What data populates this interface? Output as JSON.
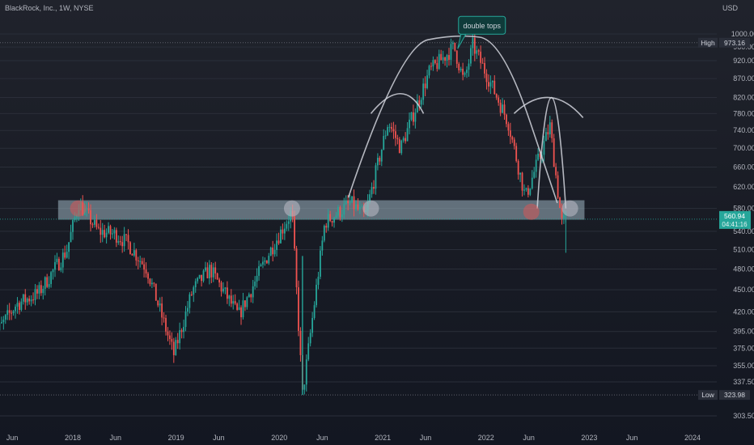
{
  "header": {
    "symbol": "BlackRock, Inc., 1W, NYSE",
    "currency": "USD"
  },
  "annotation": {
    "text": "double tops"
  },
  "markers": {
    "high": {
      "label": "High",
      "value": "973.16"
    },
    "low": {
      "label": "Low",
      "value": "323.98"
    },
    "last_price": "560.94",
    "countdown": "04:41:16"
  },
  "colors": {
    "up": "#26a69a",
    "down": "#ef5350",
    "background": "#131722",
    "zone": "#9fb7c2",
    "label_bg": "#26a69a"
  },
  "chart_data": {
    "type": "candlestick",
    "interval": "1W",
    "y_scale": "log",
    "ylim": [
      293,
      1070
    ],
    "y_ticks": [
      303.5,
      337.5,
      355,
      375,
      395,
      420,
      450,
      480,
      510,
      540,
      580,
      620,
      660,
      700,
      740,
      780,
      820,
      870,
      920,
      960,
      1000
    ],
    "y_tick_labels": [
      "303.50",
      "337.50",
      "355.00",
      "375.00",
      "395.00",
      "420.00",
      "450.00",
      "480.00",
      "510.00",
      "540.00",
      "580.00",
      "620.00",
      "660.00",
      "700.00",
      "740.00",
      "780.00",
      "820.00",
      "870.00",
      "920.00",
      "960.00",
      "1000.00"
    ],
    "x_ticks": [
      {
        "label": "Jun",
        "date": "2017-06-01"
      },
      {
        "label": "2018",
        "date": "2018-01-01"
      },
      {
        "label": "Jun",
        "date": "2018-06-01"
      },
      {
        "label": "2019",
        "date": "2019-01-01"
      },
      {
        "label": "Jun",
        "date": "2019-06-01"
      },
      {
        "label": "2020",
        "date": "2020-01-01"
      },
      {
        "label": "Jun",
        "date": "2020-06-01"
      },
      {
        "label": "2021",
        "date": "2021-01-01"
      },
      {
        "label": "Jun",
        "date": "2021-06-01"
      },
      {
        "label": "2022",
        "date": "2022-01-01"
      },
      {
        "label": "Jun",
        "date": "2022-06-01"
      },
      {
        "label": "2023",
        "date": "2023-01-01"
      },
      {
        "label": "Jun",
        "date": "2023-06-01"
      },
      {
        "label": "2024",
        "date": "2024-01-01"
      }
    ],
    "price_path": [
      {
        "date": "2017-03-20",
        "close": 385
      },
      {
        "date": "2017-06-15",
        "close": 430
      },
      {
        "date": "2017-09-01",
        "close": 445
      },
      {
        "date": "2017-12-10",
        "close": 508
      },
      {
        "date": "2018-01-22",
        "close": 590
      },
      {
        "date": "2018-04-01",
        "close": 540
      },
      {
        "date": "2018-06-01",
        "close": 535
      },
      {
        "date": "2018-07-15",
        "close": 520
      },
      {
        "date": "2018-09-20",
        "close": 480
      },
      {
        "date": "2018-12-24",
        "close": 368
      },
      {
        "date": "2019-03-01",
        "close": 450
      },
      {
        "date": "2019-05-01",
        "close": 480
      },
      {
        "date": "2019-08-10",
        "close": 415
      },
      {
        "date": "2019-11-20",
        "close": 500
      },
      {
        "date": "2020-02-15",
        "close": 575
      },
      {
        "date": "2020-03-23",
        "close": 324
      },
      {
        "date": "2020-06-10",
        "close": 555
      },
      {
        "date": "2020-09-10",
        "close": 590
      },
      {
        "date": "2020-10-30",
        "close": 565
      },
      {
        "date": "2021-01-20",
        "close": 760
      },
      {
        "date": "2021-03-05",
        "close": 700
      },
      {
        "date": "2021-06-15",
        "close": 890
      },
      {
        "date": "2021-09-10",
        "close": 960
      },
      {
        "date": "2021-10-15",
        "close": 860
      },
      {
        "date": "2021-11-15",
        "close": 965
      },
      {
        "date": "2022-01-10",
        "close": 870
      },
      {
        "date": "2022-03-20",
        "close": 760
      },
      {
        "date": "2022-05-20",
        "close": 600
      },
      {
        "date": "2022-08-15",
        "close": 750
      },
      {
        "date": "2022-09-25",
        "close": 555
      },
      {
        "date": "2022-10-10",
        "close": 560.94
      }
    ],
    "horizontal_lines": [
      {
        "label": "High",
        "value": 973.16
      },
      {
        "label": "Low",
        "value": 323.98
      }
    ],
    "zones": [
      {
        "from": "2017-11-10",
        "to": "2022-12-15",
        "low": 560,
        "high": 595
      }
    ],
    "circled_points": [
      {
        "date": "2018-01-20",
        "price": 580
      },
      {
        "date": "2020-02-15",
        "price": 580
      },
      {
        "date": "2020-11-20",
        "price": 580
      },
      {
        "date": "2022-06-10",
        "price": 574
      },
      {
        "date": "2022-10-25",
        "price": 580
      }
    ],
    "arcs": [
      {
        "points": [
          [
            "2020-09-01",
            600
          ],
          [
            "2021-03-01",
            965
          ],
          [
            "2021-09-20",
            1000
          ],
          [
            "2022-03-01",
            980
          ],
          [
            "2022-09-10",
            590
          ]
        ]
      },
      {
        "points": [
          [
            "2020-11-20",
            780
          ],
          [
            "2021-03-15",
            830
          ],
          [
            "2021-05-25",
            780
          ]
        ]
      },
      {
        "points": [
          [
            "2022-04-10",
            780
          ],
          [
            "2022-08-15",
            820
          ],
          [
            "2022-12-10",
            770
          ]
        ]
      },
      {
        "points": [
          [
            "2022-07-01",
            580
          ],
          [
            "2022-08-20",
            820
          ],
          [
            "2022-10-10",
            580
          ]
        ]
      }
    ],
    "callout": {
      "text": "double tops",
      "date": "2021-10-10",
      "price": 1025
    }
  }
}
